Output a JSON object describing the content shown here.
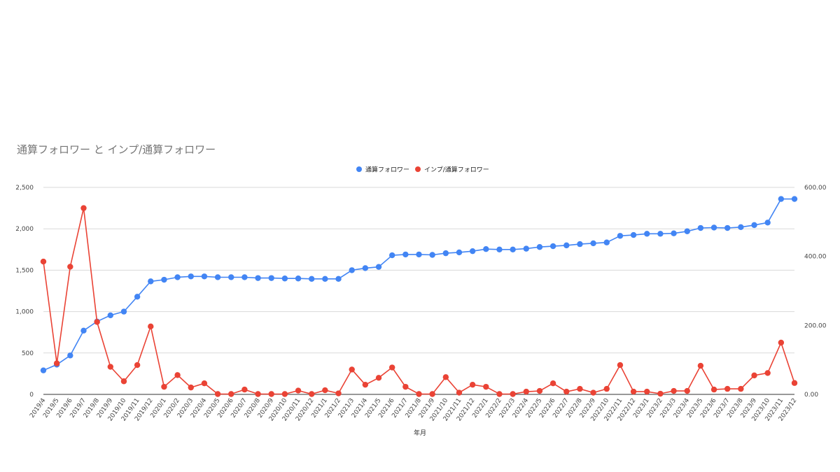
{
  "chart_data": {
    "type": "line",
    "title": "通算フォロワー と インプ/通算フォロワー",
    "xlabel": "年月",
    "legend_position": "top-center",
    "grid": true,
    "categories": [
      "2019/4",
      "2019/5",
      "2019/6",
      "2019/7",
      "2019/8",
      "2019/9",
      "2019/10",
      "2019/11",
      "2019/12",
      "2020/1",
      "2020/2",
      "2020/3",
      "2020/4",
      "2020/5",
      "2020/6",
      "2020/7",
      "2020/8",
      "2020/9",
      "2020/10",
      "2020/11",
      "2020/12",
      "2021/1",
      "2021/2",
      "2021/3",
      "2021/4",
      "2021/5",
      "2021/6",
      "2021/7",
      "2021/8",
      "2021/9",
      "2021/10",
      "2021/11",
      "2021/12",
      "2022/1",
      "2022/2",
      "2022/3",
      "2022/4",
      "2022/5",
      "2022/6",
      "2022/7",
      "2022/8",
      "2022/9",
      "2022/10",
      "2022/11",
      "2022/12",
      "2023/1",
      "2023/2",
      "2023/3",
      "2023/4",
      "2023/5",
      "2023/6",
      "2023/7",
      "2023/8",
      "2023/9",
      "2023/10",
      "2023/11",
      "2023/12"
    ],
    "y_left": {
      "ylim": [
        0,
        2500
      ],
      "ticks": [
        "0",
        "500",
        "1,000",
        "1,500",
        "2,000",
        "2,500"
      ]
    },
    "y_right": {
      "ylim": [
        0,
        600
      ],
      "ticks": [
        "0.00",
        "200.00",
        "400.00",
        "600.00"
      ]
    },
    "series": [
      {
        "name": "通算フォロワー",
        "axis": "left",
        "color": "#4285f4",
        "values": [
          290,
          360,
          470,
          770,
          880,
          955,
          1000,
          1180,
          1365,
          1385,
          1415,
          1425,
          1425,
          1415,
          1415,
          1415,
          1405,
          1405,
          1400,
          1400,
          1395,
          1395,
          1395,
          1500,
          1525,
          1540,
          1680,
          1690,
          1690,
          1685,
          1705,
          1715,
          1730,
          1755,
          1750,
          1750,
          1760,
          1780,
          1790,
          1800,
          1815,
          1825,
          1835,
          1915,
          1925,
          1940,
          1940,
          1945,
          1970,
          2010,
          2015,
          2010,
          2020,
          2045,
          2075,
          2360,
          2360
        ]
      },
      {
        "name": "インプ/通算フォロワー",
        "axis": "right",
        "color": "#ea4335",
        "values": [
          385,
          90,
          370,
          540,
          210,
          80,
          38,
          85,
          197,
          22,
          56,
          20,
          32,
          1,
          1,
          14,
          1,
          1,
          1,
          11,
          1,
          12,
          3,
          72,
          28,
          48,
          78,
          22,
          1,
          1,
          50,
          5,
          28,
          22,
          1,
          1,
          8,
          10,
          32,
          8,
          16,
          5,
          16,
          85,
          8,
          8,
          2,
          10,
          10,
          83,
          14,
          16,
          16,
          55,
          62,
          150,
          33
        ]
      }
    ]
  }
}
